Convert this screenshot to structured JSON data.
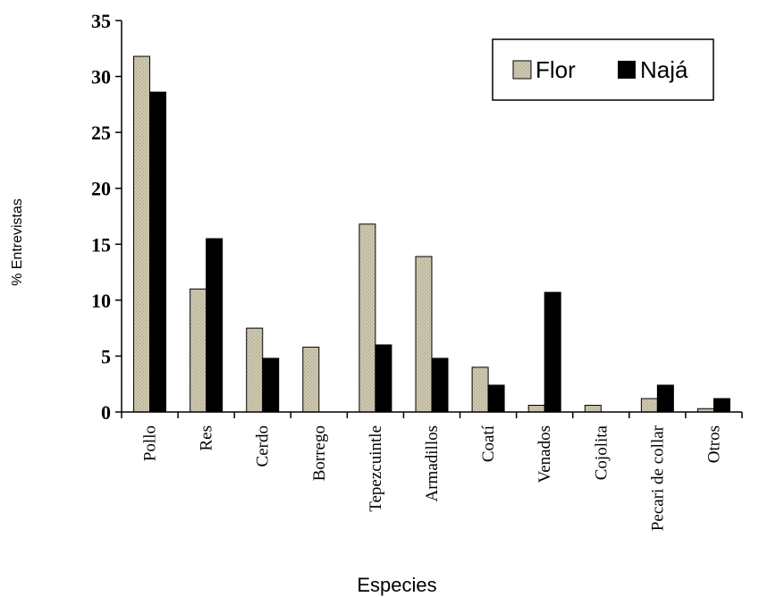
{
  "chart_data": {
    "type": "bar",
    "title": "",
    "xlabel": "Especies",
    "ylabel": "% Entrevistas",
    "ylim": [
      0,
      35
    ],
    "yticks": [
      0,
      5,
      10,
      15,
      20,
      25,
      30,
      35
    ],
    "categories": [
      "Pollo",
      "Res",
      "Cerdo",
      "Borrego",
      "Tepezcuintle",
      "Armadillos",
      "Coatí",
      "Venados",
      "Cojolita",
      "Pecari de collar",
      "Otros"
    ],
    "series": [
      {
        "name": "Flor",
        "color": "#c9c3ab",
        "values": [
          31.8,
          11.0,
          7.5,
          5.8,
          16.8,
          13.9,
          4.0,
          0.6,
          0.6,
          1.2,
          0.3
        ]
      },
      {
        "name": "Najá",
        "color": "#000000",
        "values": [
          28.6,
          15.5,
          4.8,
          0,
          6.0,
          4.8,
          2.4,
          10.7,
          0,
          2.4,
          1.2
        ]
      }
    ],
    "grid": false,
    "legend_position": "top-right"
  }
}
